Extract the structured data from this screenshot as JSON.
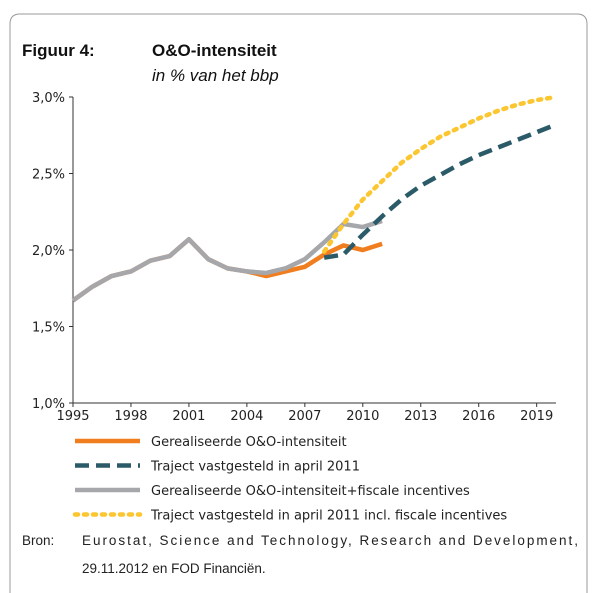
{
  "chart_data": {
    "type": "line",
    "title_label": "Figuur 4:",
    "title": "O&O-intensiteit",
    "subtitle": "in % van het bbp",
    "x": [
      1995,
      1996,
      1997,
      1998,
      1999,
      2000,
      2001,
      2002,
      2003,
      2004,
      2005,
      2006,
      2007,
      2008,
      2009,
      2010,
      2011,
      2012,
      2013,
      2014,
      2015,
      2016,
      2017,
      2018,
      2019,
      2020
    ],
    "xlim": [
      1995,
      2020
    ],
    "xticks": [
      1995,
      1998,
      2001,
      2004,
      2007,
      2010,
      2013,
      2016,
      2019
    ],
    "ylim": [
      1.0,
      3.0
    ],
    "yticks": [
      {
        "value": 1.0,
        "label": "1,0%"
      },
      {
        "value": 1.5,
        "label": "1,5%"
      },
      {
        "value": 2.0,
        "label": "2,0%"
      },
      {
        "value": 2.5,
        "label": "2,5%"
      },
      {
        "value": 3.0,
        "label": "3,0%"
      }
    ],
    "grid": false,
    "series": [
      {
        "name": "Gerealiseerde O&O-intensiteit",
        "color": "#f07d1e",
        "style": "solid",
        "values": [
          1.67,
          1.76,
          1.83,
          1.86,
          1.93,
          1.96,
          2.07,
          1.94,
          1.88,
          1.86,
          1.83,
          1.86,
          1.89,
          1.97,
          2.03,
          2.0,
          2.04,
          null,
          null,
          null,
          null,
          null,
          null,
          null,
          null,
          null
        ]
      },
      {
        "name": "Traject vastgesteld in april 2011",
        "color": "#2b5a68",
        "style": "dashed",
        "values": [
          null,
          null,
          null,
          null,
          null,
          null,
          null,
          null,
          null,
          null,
          null,
          null,
          null,
          1.95,
          1.97,
          2.1,
          2.22,
          2.33,
          2.42,
          2.49,
          2.56,
          2.62,
          2.67,
          2.72,
          2.77,
          2.82
        ]
      },
      {
        "name": "Gerealiseerde O&O-intensiteit+fiscale incentives",
        "color": "#a6a7ab",
        "style": "solid",
        "values": [
          1.67,
          1.76,
          1.83,
          1.86,
          1.93,
          1.96,
          2.07,
          1.94,
          1.88,
          1.86,
          1.85,
          1.88,
          1.94,
          2.05,
          2.17,
          2.15,
          2.19,
          null,
          null,
          null,
          null,
          null,
          null,
          null,
          null,
          null
        ]
      },
      {
        "name": "Traject vastgesteld in april 2011 incl. fiscale incentives",
        "color": "#fcc631",
        "style": "dotted",
        "values": [
          null,
          null,
          null,
          null,
          null,
          null,
          null,
          null,
          null,
          null,
          null,
          null,
          null,
          1.99,
          2.17,
          2.33,
          2.45,
          2.57,
          2.66,
          2.74,
          2.8,
          2.86,
          2.91,
          2.95,
          2.98,
          3.0
        ]
      }
    ],
    "source_label": "Bron:",
    "source": [
      "Eurostat, Science and Technology, Research and Development,",
      "29.11.2012 en FOD Financiën."
    ]
  }
}
